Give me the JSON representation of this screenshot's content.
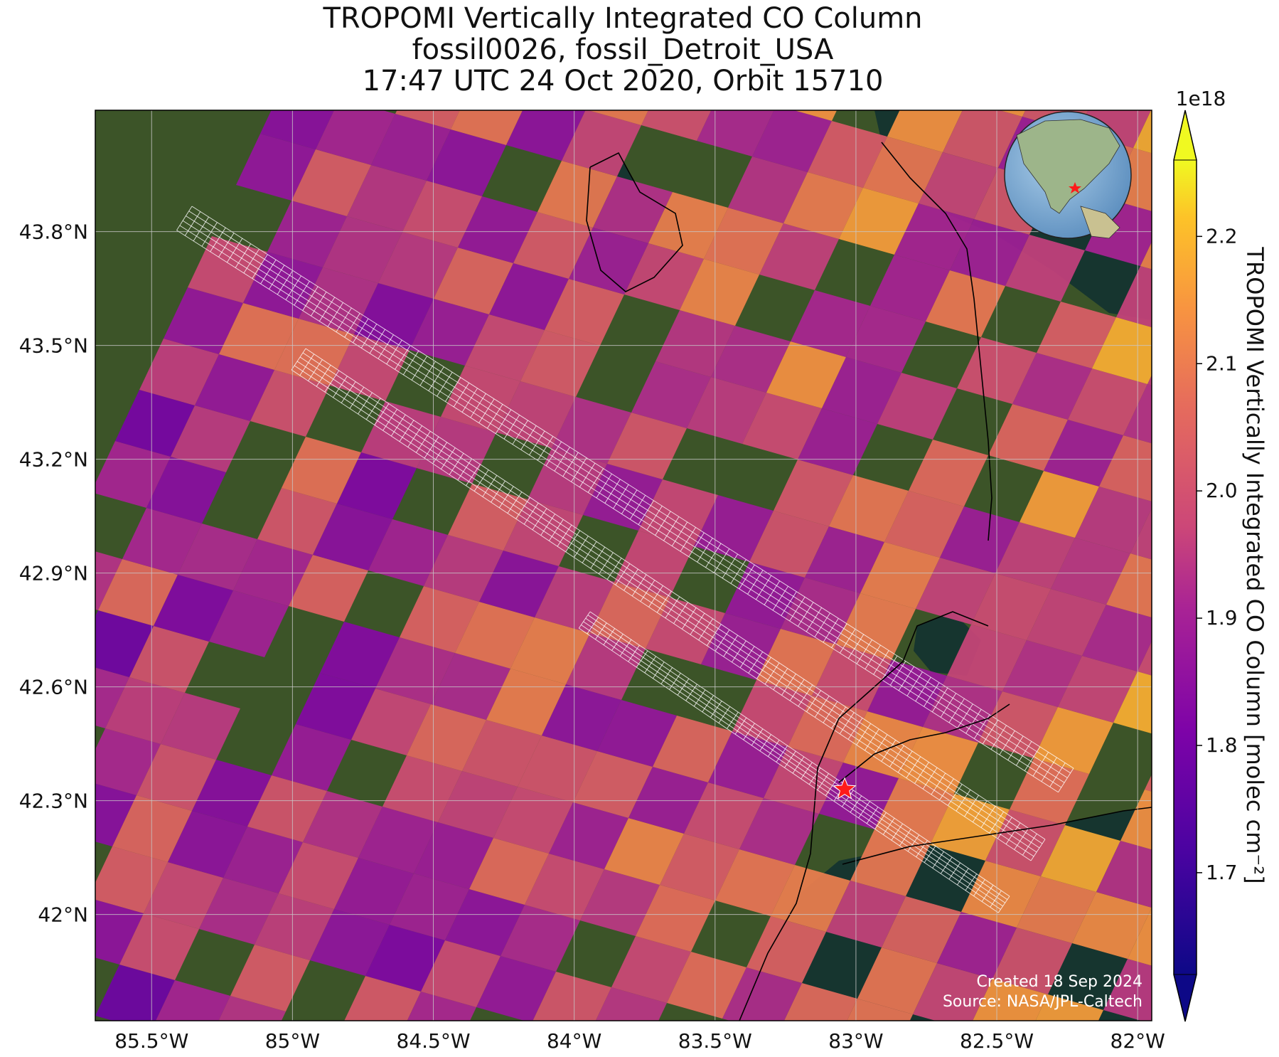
{
  "title": {
    "line1": "TROPOMI Vertically Integrated CO Column",
    "line2": "fossil0026, fossil_Detroit_USA",
    "line3": "17:47 UTC 24 Oct 2020, Orbit 15710"
  },
  "map": {
    "lon_range": [
      -85.7,
      -81.95
    ],
    "lat_range": [
      41.72,
      44.12
    ],
    "lon_ticks": [
      {
        "v": -85.5,
        "label": "85.5°W"
      },
      {
        "v": -85.0,
        "label": "85°W"
      },
      {
        "v": -84.5,
        "label": "84.5°W"
      },
      {
        "v": -84.0,
        "label": "84°W"
      },
      {
        "v": -83.5,
        "label": "83.5°W"
      },
      {
        "v": -83.0,
        "label": "83°W"
      },
      {
        "v": -82.5,
        "label": "82.5°W"
      },
      {
        "v": -82.0,
        "label": "82°W"
      }
    ],
    "lat_ticks": [
      {
        "v": 43.8,
        "label": "43.8°N"
      },
      {
        "v": 43.5,
        "label": "43.5°N"
      },
      {
        "v": 43.2,
        "label": "43.2°N"
      },
      {
        "v": 42.9,
        "label": "42.9°N"
      },
      {
        "v": 42.6,
        "label": "42.6°N"
      },
      {
        "v": 42.3,
        "label": "42.3°N"
      },
      {
        "v": 42.0,
        "label": "42°N"
      }
    ],
    "site_marker": {
      "lon": -83.04,
      "lat": 42.33,
      "color": "#ff1a1a"
    },
    "colors": {
      "land": "#3c5428",
      "water": "#16352f",
      "grid": "#c8c8c8",
      "coast": "#000000",
      "target_grid": "#ffffff"
    }
  },
  "colorbar": {
    "label": "TROPOMI Vertically Integrated CO Column [molec cm⁻²]",
    "multiplier": "1e18",
    "range": [
      1.62,
      2.26
    ],
    "colormap": "plasma",
    "ticks": [
      {
        "v": 1.7,
        "label": "1.7"
      },
      {
        "v": 1.8,
        "label": "1.8"
      },
      {
        "v": 1.9,
        "label": "1.9"
      },
      {
        "v": 2.0,
        "label": "2.0"
      },
      {
        "v": 2.1,
        "label": "2.1"
      },
      {
        "v": 2.2,
        "label": "2.2"
      }
    ]
  },
  "credit": {
    "created": "Created 18 Sep 2024",
    "source": "Source: NASA/JPL-Caltech"
  }
}
